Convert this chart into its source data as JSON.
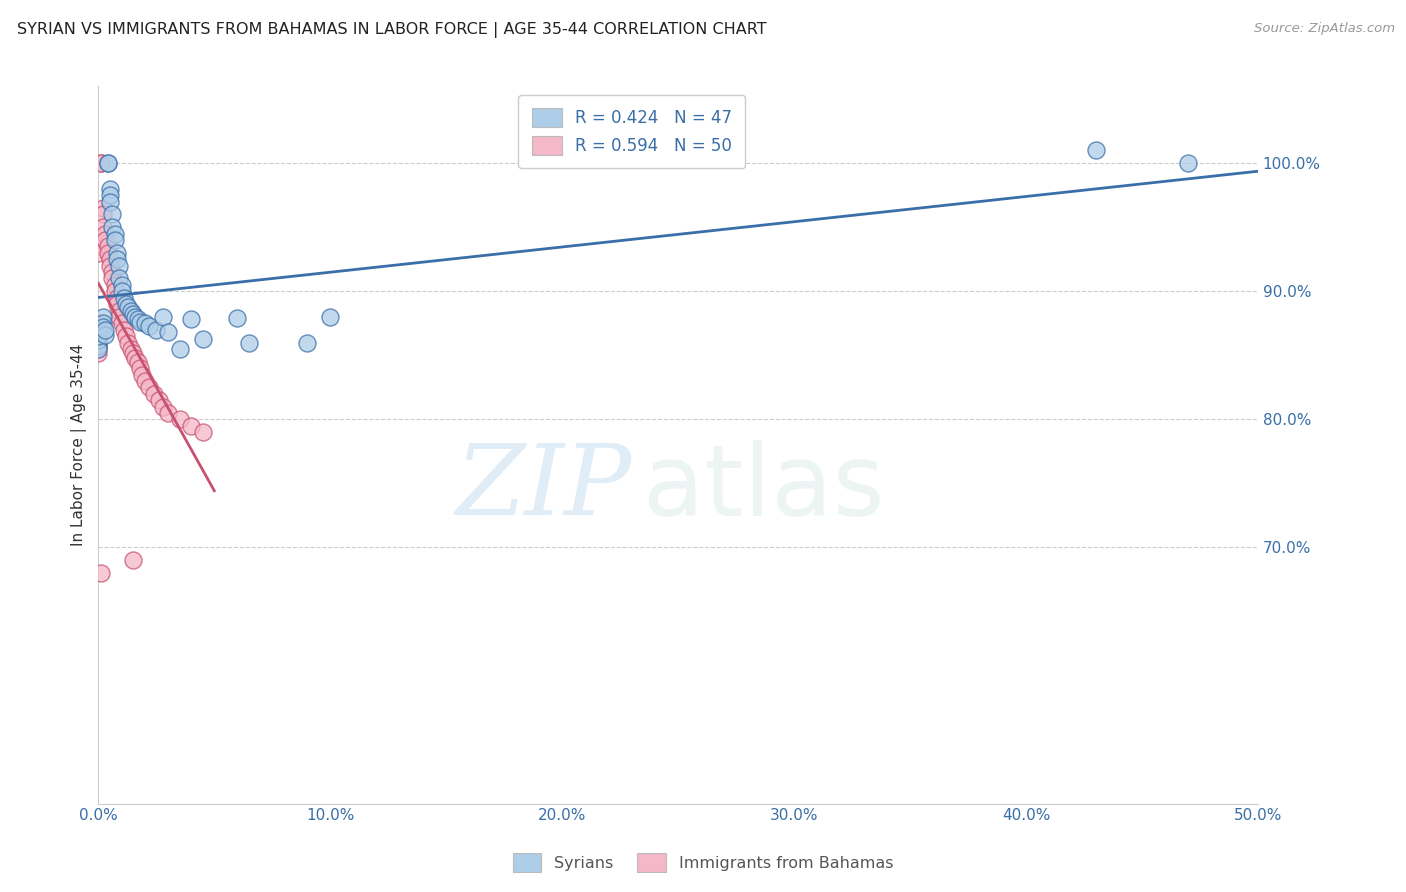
{
  "title": "SYRIAN VS IMMIGRANTS FROM BAHAMAS IN LABOR FORCE | AGE 35-44 CORRELATION CHART",
  "source": "Source: ZipAtlas.com",
  "ylabel": "In Labor Force | Age 35-44",
  "xlim": [
    0.0,
    0.5
  ],
  "ylim": [
    0.5,
    1.06
  ],
  "xticks": [
    0.0,
    0.1,
    0.2,
    0.3,
    0.4,
    0.5
  ],
  "xtick_labels": [
    "0.0%",
    "10.0%",
    "20.0%",
    "30.0%",
    "40.0%",
    "50.0%"
  ],
  "ytick_positions": [
    0.7,
    0.8,
    0.9,
    1.0
  ],
  "ytick_labels": [
    "70.0%",
    "80.0%",
    "90.0%",
    "100.0%"
  ],
  "legend_label1": "Syrians",
  "legend_label2": "Immigrants from Bahamas",
  "r1": 0.424,
  "n1": 47,
  "r2": 0.594,
  "n2": 50,
  "color_blue": "#aecde8",
  "color_pink": "#f4b8c8",
  "color_blue_line": "#3a6ea8",
  "color_pink_line": "#c85070",
  "color_legend_blue": "#aecde8",
  "color_legend_pink": "#f4b8c8",
  "grid_color": "#cccccc",
  "title_color": "#222222",
  "axis_color": "#3a6ea8",
  "watermark_zip": "ZIP",
  "watermark_atlas": "atlas",
  "syrians_x": [
    0.0,
    0.0,
    0.0,
    0.0,
    0.0,
    0.002,
    0.002,
    0.002,
    0.003,
    0.003,
    0.004,
    0.004,
    0.005,
    0.005,
    0.005,
    0.006,
    0.006,
    0.007,
    0.007,
    0.008,
    0.008,
    0.009,
    0.009,
    0.01,
    0.01,
    0.011,
    0.012,
    0.013,
    0.014,
    0.015,
    0.016,
    0.017,
    0.018,
    0.02,
    0.022,
    0.025,
    0.028,
    0.03,
    0.035,
    0.04,
    0.045,
    0.06,
    0.065,
    0.09,
    0.1,
    0.43,
    0.47
  ],
  "syrians_y": [
    0.87,
    0.857,
    0.862,
    0.855,
    0.865,
    0.88,
    0.875,
    0.872,
    0.866,
    0.87,
    1.0,
    1.0,
    0.98,
    0.975,
    0.97,
    0.96,
    0.95,
    0.945,
    0.94,
    0.93,
    0.925,
    0.92,
    0.91,
    0.905,
    0.9,
    0.895,
    0.89,
    0.888,
    0.885,
    0.882,
    0.88,
    0.878,
    0.876,
    0.875,
    0.873,
    0.87,
    0.88,
    0.868,
    0.855,
    0.878,
    0.863,
    0.879,
    0.86,
    0.86,
    0.88,
    1.01,
    1.0
  ],
  "bahamas_x": [
    0.0,
    0.0,
    0.0,
    0.0,
    0.0,
    0.0,
    0.0,
    0.0,
    0.0,
    0.0,
    0.001,
    0.001,
    0.002,
    0.002,
    0.002,
    0.003,
    0.003,
    0.004,
    0.004,
    0.005,
    0.005,
    0.006,
    0.006,
    0.007,
    0.007,
    0.008,
    0.008,
    0.009,
    0.009,
    0.01,
    0.011,
    0.012,
    0.013,
    0.014,
    0.015,
    0.016,
    0.017,
    0.018,
    0.019,
    0.02,
    0.022,
    0.024,
    0.026,
    0.028,
    0.03,
    0.035,
    0.04,
    0.045,
    0.015,
    0.001
  ],
  "bahamas_y": [
    0.87,
    0.875,
    0.868,
    0.863,
    0.858,
    0.855,
    0.852,
    0.858,
    0.935,
    0.93,
    1.0,
    1.0,
    0.965,
    0.96,
    0.95,
    0.945,
    0.94,
    0.935,
    0.93,
    0.925,
    0.92,
    0.915,
    0.91,
    0.905,
    0.9,
    0.895,
    0.89,
    0.885,
    0.88,
    0.875,
    0.87,
    0.865,
    0.86,
    0.855,
    0.852,
    0.848,
    0.845,
    0.84,
    0.835,
    0.83,
    0.825,
    0.82,
    0.815,
    0.81,
    0.805,
    0.8,
    0.795,
    0.79,
    0.69,
    0.68
  ]
}
